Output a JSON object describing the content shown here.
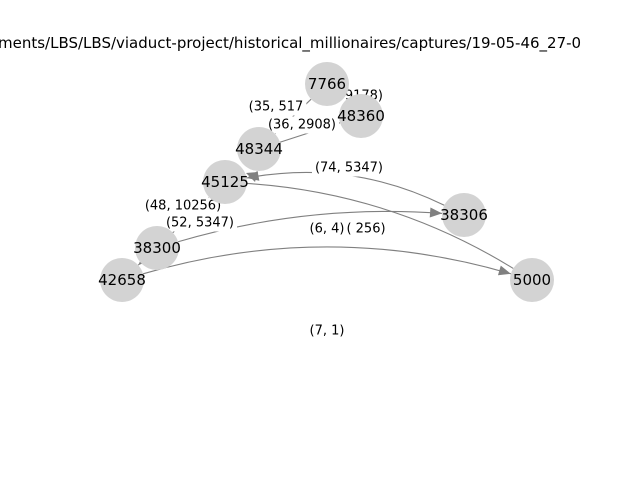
{
  "title": "ments/LBS/LBS/viaduct-project/historical_millionaires/captures/19-05-46_27-0",
  "colors": {
    "node": "#d3d3d3",
    "edge": "#808080",
    "background": "#ffffff"
  },
  "nodes": [
    {
      "id": "7766",
      "label": "7766"
    },
    {
      "id": "48360",
      "label": "48360"
    },
    {
      "id": "48344",
      "label": "48344"
    },
    {
      "id": "45125",
      "label": "45125"
    },
    {
      "id": "38306",
      "label": "38306"
    },
    {
      "id": "38300",
      "label": "38300"
    },
    {
      "id": "42658",
      "label": "42658"
    },
    {
      "id": "5000",
      "label": "5000"
    }
  ],
  "edges": [
    {
      "id": "e-7766-48360",
      "from": "7766",
      "to": "48360",
      "label": "(10, 9178)"
    },
    {
      "id": "e-7766-48344",
      "from": "7766",
      "to": "48344",
      "label": "(35, 517"
    },
    {
      "id": "e-48360-48344",
      "from": "48360",
      "to": "48344",
      "label": "(36, 2908)"
    },
    {
      "id": "e-38306-45125",
      "from": "38306",
      "to": "45125",
      "label": "(74, 5347)"
    },
    {
      "id": "e-45125-5000",
      "from": "45125",
      "to": "5000",
      "label": "(6, 4)"
    },
    {
      "id": "e-38300-38306",
      "from": "38300",
      "to": "38306",
      "label": "( 256)"
    },
    {
      "id": "e-45125-38300",
      "from": "45125",
      "to": "38300",
      "label": "(48, 10256)"
    },
    {
      "id": "e-38300-42658",
      "from": "38300",
      "to": "42658",
      "label": "(52, 5347)"
    },
    {
      "id": "e-42658-5000",
      "from": "42658",
      "to": "5000",
      "label": "(7, 1)"
    }
  ]
}
